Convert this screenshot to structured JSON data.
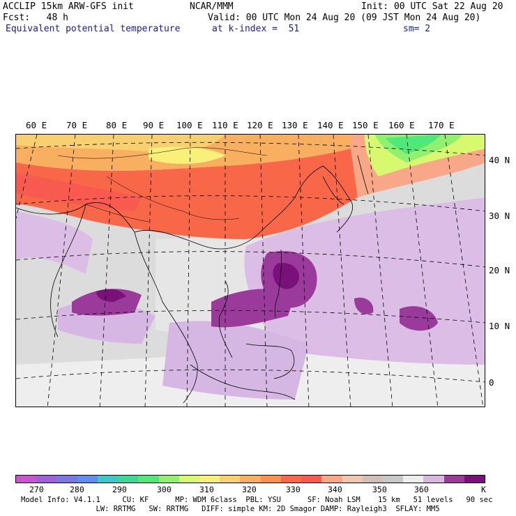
{
  "header": {
    "line1_left": "ACCLIP 15km ARW-GFS init",
    "line1_center": "NCAR/MMM",
    "line1_right": "Init: 00 UTC Sat 22 Aug 20",
    "line2_left": "Fcst:   48 h",
    "line2_right": "Valid: 00 UTC Mon 24 Aug 20 (09 JST Mon 24 Aug 20)",
    "line3_field": "Equivalent potential temperature",
    "line3_level": "at k-index =  51",
    "line3_smooth": "sm= 2"
  },
  "map": {
    "lon_labels": [
      "60 E",
      "70 E",
      "80 E",
      "90 E",
      "100 E",
      "110 E",
      "120 E",
      "130 E",
      "140 E",
      "150 E",
      "160 E",
      "170 E"
    ],
    "lat_labels": [
      "40 N",
      "30 N",
      "20 N",
      "10 N",
      "0"
    ]
  },
  "colorbar": {
    "colors": [
      "#c855d0",
      "#a060d8",
      "#7878e0",
      "#5f8ef0",
      "#3cc8c8",
      "#3cd89a",
      "#50e878",
      "#90f070",
      "#d8f870",
      "#f8f078",
      "#f8d070",
      "#f8b060",
      "#f89050",
      "#f86848",
      "#f85a50",
      "#f8a888",
      "#f0c8b0",
      "#d0c0b8",
      "#c8c8c8",
      "#eeeeee",
      "#d8b8e0",
      "#9a3a9a",
      "#7a107a"
    ],
    "ticks": [
      "270",
      "280",
      "290",
      "300",
      "310",
      "320",
      "330",
      "340",
      "350",
      "360"
    ],
    "unit": "K"
  },
  "footer": {
    "line1": "Model Info: V4.1.1     CU: KF      MP: WDM 6class  PBL: YSU      SF: Noah LSM    15 km   51 levels   90 sec",
    "line2": "                 LW: RRTMG   SW: RRTMG   DIFF: simple KM: 2D Smagor DAMP: Rayleigh3  SFLAY: MM5"
  }
}
